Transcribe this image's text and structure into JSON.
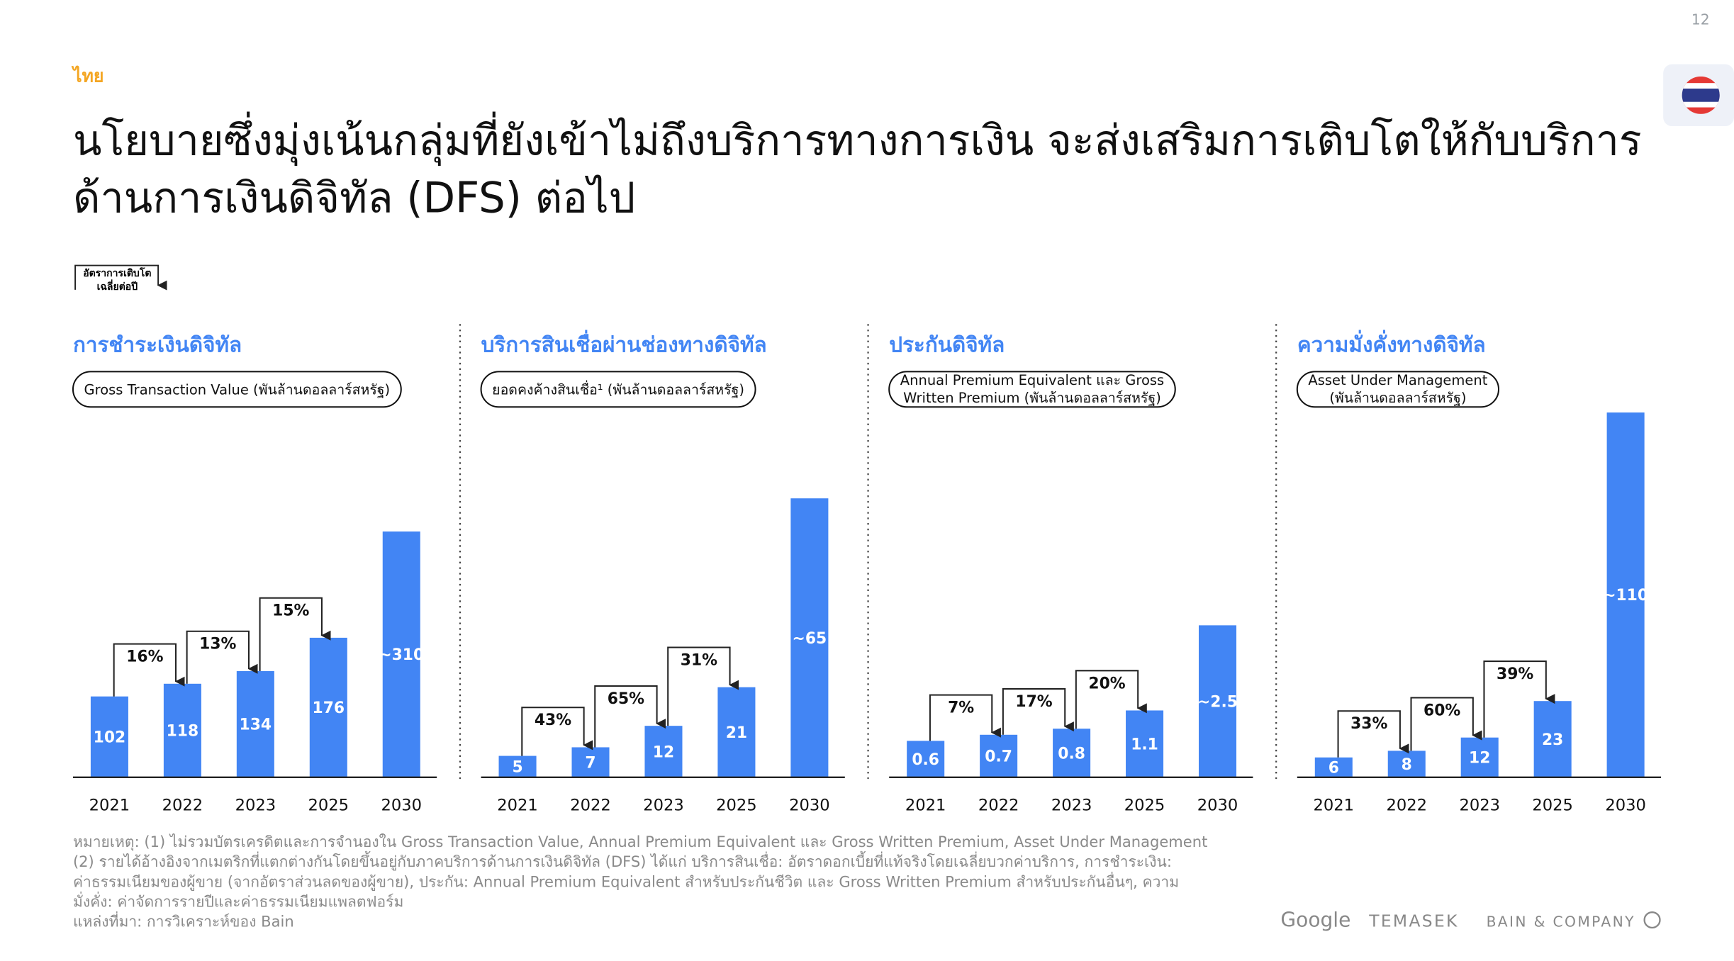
{
  "page_number": "12",
  "region": "ไทย",
  "title_lines": [
    "นโยบายซึ่งมุ่งเน้นกลุ่มที่ยังเข้าไม่ถึงบริการทางการเงิน จะส่งเสริมการเติบโตให้กับบริการ",
    "ด้านการเงินดิจิทัล (DFS) ต่อไป"
  ],
  "growth_legend_lines": [
    "อัตราการเติบโต",
    "เฉลี่ยต่อปี"
  ],
  "chart_data": [
    {
      "type": "bar",
      "title": "การชำระเงินดิจิทัล",
      "measure_lines": [
        "Gross Transaction Value (พันล้านดอลลาร์สหรัฐ)"
      ],
      "categories": [
        "2021",
        "2022",
        "2023",
        "2025",
        "2030"
      ],
      "values": [
        102,
        118,
        134,
        176,
        310
      ],
      "value_labels": [
        "102",
        "118",
        "134",
        "176",
        "~310"
      ],
      "growth_rates": [
        16,
        13,
        15
      ],
      "growth_labels": [
        "16%",
        "13%",
        "15%"
      ],
      "color": "#4285f4",
      "ylim": [
        0,
        460
      ]
    },
    {
      "type": "bar",
      "title": "บริการสินเชื่อผ่านช่องทางดิจิทัล",
      "measure_lines": [
        "ยอดคงค้างสินเชื่อ¹ (พันล้านดอลลาร์สหรัฐ)"
      ],
      "categories": [
        "2021",
        "2022",
        "2023",
        "2025",
        "2030"
      ],
      "values": [
        5,
        7,
        12,
        21,
        65
      ],
      "value_labels": [
        "5",
        "7",
        "12",
        "21",
        "~65"
      ],
      "growth_rates": [
        43,
        65,
        31
      ],
      "growth_labels": [
        "43%",
        "65%",
        "31%"
      ],
      "color": "#4285f4",
      "ylim": [
        0,
        85
      ]
    },
    {
      "type": "bar",
      "title": "ประกันดิจิทัล",
      "measure_lines": [
        "Annual Premium Equivalent และ Gross",
        "Written Premium (พันล้านดอลลาร์สหรัฐ)"
      ],
      "categories": [
        "2021",
        "2022",
        "2023",
        "2025",
        "2030"
      ],
      "values": [
        0.6,
        0.7,
        0.8,
        1.1,
        2.5
      ],
      "value_labels": [
        "0.6",
        "0.7",
        "0.8",
        "1.1",
        "~2.5"
      ],
      "growth_rates": [
        7,
        17,
        20
      ],
      "growth_labels": [
        "7%",
        "17%",
        "20%"
      ],
      "color": "#4285f4",
      "ylim": [
        0,
        6
      ]
    },
    {
      "type": "bar",
      "title": "ความมั่งคั่งทางดิจิทัล",
      "measure_lines": [
        "Asset Under Management",
        "(พันล้านดอลลาร์สหรัฐ)"
      ],
      "categories": [
        "2021",
        "2022",
        "2023",
        "2025",
        "2030"
      ],
      "values": [
        6,
        8,
        12,
        23,
        110
      ],
      "value_labels": [
        "6",
        "8",
        "12",
        "23",
        "~110"
      ],
      "growth_rates": [
        33,
        60,
        39
      ],
      "growth_labels": [
        "33%",
        "60%",
        "39%"
      ],
      "color": "#4285f4",
      "ylim": [
        0,
        110
      ]
    }
  ],
  "footnotes": [
    "หมายเหตุ: (1) ไม่รวมบัตรเครดิตและการจำนองใน Gross Transaction Value, Annual Premium Equivalent และ Gross Written Premium, Asset Under Management",
    "(2) รายได้อ้างอิงจากเมตริกที่แตกต่างกันโดยขึ้นอยู่กับภาคบริการด้านการเงินดิจิทัล (DFS) ได้แก่ บริการสินเชื่อ: อัตราดอกเบี้ยที่แท้จริงโดยเฉลี่ยบวกค่าบริการ, การชำระเงิน:",
    "ค่าธรรมเนียมของผู้ขาย (จากอัตราส่วนลดของผู้ขาย), ประกัน: Annual Premium Equivalent สำหรับประกันชีวิต และ Gross Written Premium สำหรับประกันอื่นๆ, ความ",
    "มั่งคั่ง: ค่าจัดการรายปีและค่าธรรมเนียมแพลตฟอร์ม",
    "แหล่งที่มา: การวิเคราะห์ของ Bain"
  ],
  "logos": [
    "Google",
    "TEMASEK",
    "BAIN & COMPANY"
  ]
}
